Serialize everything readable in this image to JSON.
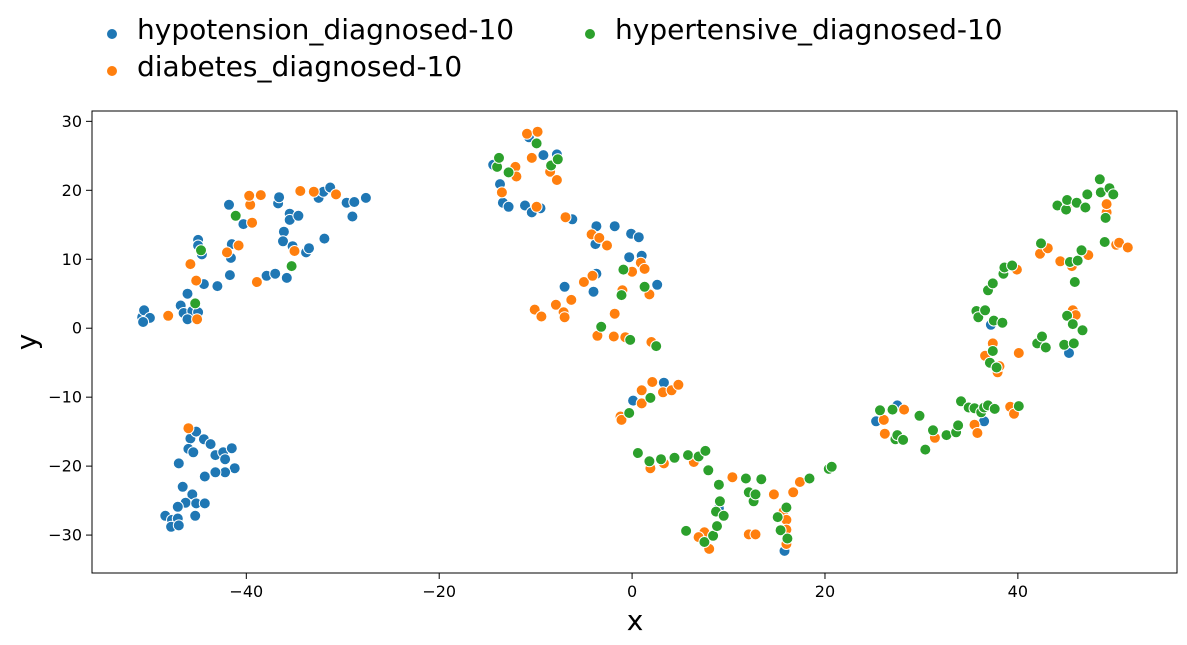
{
  "chart_data": {
    "type": "scatter",
    "title": "",
    "xlabel": "x",
    "ylabel": "y",
    "xlim": [
      -56,
      56.5
    ],
    "ylim": [
      -35.5,
      31.5
    ],
    "xticks": [
      -40,
      -20,
      0,
      20,
      40
    ],
    "xtick_labels": [
      "−40",
      "−20",
      "0",
      "20",
      "40"
    ],
    "yticks": [
      -30,
      -20,
      -10,
      0,
      10,
      20,
      30
    ],
    "ytick_labels": [
      "−30",
      "−20",
      "−10",
      "0",
      "10",
      "20",
      "30"
    ],
    "grid": false,
    "legend_position": "top-left, above plot, two columns",
    "series": [
      {
        "name": "hypotension_diagnosed-10",
        "color": "#1f77b4",
        "points": [
          [
            -50.8,
            1.6
          ],
          [
            -50.6,
            2.6
          ],
          [
            -50.0,
            1.5
          ],
          [
            -50.7,
            0.9
          ],
          [
            -46.8,
            3.3
          ],
          [
            -46.5,
            2.2
          ],
          [
            -45.6,
            2.5
          ],
          [
            -46.1,
            5.0
          ],
          [
            -45.0,
            2.3
          ],
          [
            -46.1,
            1.3
          ],
          [
            -44.4,
            6.4
          ],
          [
            -43.0,
            6.1
          ],
          [
            -41.7,
            7.7
          ],
          [
            -45.0,
            12.8
          ],
          [
            -45.0,
            12.0
          ],
          [
            -44.6,
            10.7
          ],
          [
            -41.6,
            10.2
          ],
          [
            -41.5,
            12.2
          ],
          [
            -41.8,
            17.9
          ],
          [
            -40.3,
            15.1
          ],
          [
            -37.9,
            7.6
          ],
          [
            -37.0,
            7.9
          ],
          [
            -36.7,
            18.1
          ],
          [
            -36.6,
            19.0
          ],
          [
            -36.1,
            14.0
          ],
          [
            -36.2,
            12.6
          ],
          [
            -35.5,
            16.6
          ],
          [
            -35.5,
            15.7
          ],
          [
            -35.2,
            11.9
          ],
          [
            -34.6,
            16.3
          ],
          [
            -35.8,
            7.3
          ],
          [
            -33.8,
            11.0
          ],
          [
            -33.5,
            11.6
          ],
          [
            -32.5,
            18.9
          ],
          [
            -32.0,
            19.8
          ],
          [
            -31.3,
            20.4
          ],
          [
            -31.9,
            13.0
          ],
          [
            -29.6,
            18.2
          ],
          [
            -29.0,
            16.2
          ],
          [
            -28.8,
            18.3
          ],
          [
            -27.6,
            18.9
          ],
          [
            -47.0,
            -19.6
          ],
          [
            -45.8,
            -16.0
          ],
          [
            -46.0,
            -17.5
          ],
          [
            -45.2,
            -15.0
          ],
          [
            -44.4,
            -16.1
          ],
          [
            -43.7,
            -16.8
          ],
          [
            -45.5,
            -18.0
          ],
          [
            -43.2,
            -18.4
          ],
          [
            -42.4,
            -18.0
          ],
          [
            -42.2,
            -19.0
          ],
          [
            -41.5,
            -17.4
          ],
          [
            -41.2,
            -20.3
          ],
          [
            -42.2,
            -20.9
          ],
          [
            -43.2,
            -20.9
          ],
          [
            -44.3,
            -21.5
          ],
          [
            -46.6,
            -23.0
          ],
          [
            -45.6,
            -24.1
          ],
          [
            -46.3,
            -25.3
          ],
          [
            -45.2,
            -25.4
          ],
          [
            -44.3,
            -25.4
          ],
          [
            -47.1,
            -25.9
          ],
          [
            -48.4,
            -27.2
          ],
          [
            -47.7,
            -27.8
          ],
          [
            -47.1,
            -27.6
          ],
          [
            -47.8,
            -28.8
          ],
          [
            -47.0,
            -28.6
          ],
          [
            -45.3,
            -27.2
          ],
          [
            -14.4,
            23.7
          ],
          [
            -13.7,
            20.9
          ],
          [
            -13.4,
            18.2
          ],
          [
            -12.8,
            17.6
          ],
          [
            -11.1,
            17.8
          ],
          [
            -10.7,
            27.7
          ],
          [
            -10.4,
            16.8
          ],
          [
            -9.5,
            17.4
          ],
          [
            -9.2,
            25.1
          ],
          [
            -7.8,
            25.2
          ],
          [
            -6.2,
            15.8
          ],
          [
            -7.0,
            6.0
          ],
          [
            -3.7,
            14.8
          ],
          [
            -3.8,
            12.2
          ],
          [
            -1.8,
            14.8
          ],
          [
            -0.1,
            13.7
          ],
          [
            0.7,
            13.2
          ],
          [
            1.0,
            10.5
          ],
          [
            -0.3,
            10.3
          ],
          [
            -3.7,
            7.9
          ],
          [
            -4.0,
            5.3
          ],
          [
            2.6,
            6.3
          ],
          [
            0.1,
            -10.5
          ],
          [
            3.3,
            -7.9
          ],
          [
            9.0,
            -26.1
          ],
          [
            15.8,
            -32.3
          ],
          [
            25.3,
            -13.5
          ],
          [
            27.5,
            -11.2
          ],
          [
            36.5,
            -13.5
          ],
          [
            37.2,
            0.5
          ],
          [
            45.3,
            -3.6
          ]
        ]
      },
      {
        "name": "diabetes_diagnosed-10",
        "color": "#ff7f0e",
        "points": [
          [
            -48.1,
            1.8
          ],
          [
            -45.1,
            1.3
          ],
          [
            -45.2,
            6.9
          ],
          [
            -45.8,
            9.3
          ],
          [
            -42.0,
            11.0
          ],
          [
            -40.8,
            12.0
          ],
          [
            -39.4,
            15.3
          ],
          [
            -39.6,
            17.9
          ],
          [
            -39.7,
            19.2
          ],
          [
            -38.5,
            19.3
          ],
          [
            -38.9,
            6.7
          ],
          [
            -35.0,
            11.2
          ],
          [
            -34.4,
            19.9
          ],
          [
            -33.0,
            19.8
          ],
          [
            -30.7,
            19.4
          ],
          [
            -46.0,
            -14.5
          ],
          [
            -13.5,
            19.7
          ],
          [
            -12.1,
            23.4
          ],
          [
            -12.0,
            22.0
          ],
          [
            -10.9,
            28.2
          ],
          [
            -10.4,
            24.7
          ],
          [
            -9.8,
            28.5
          ],
          [
            -9.9,
            17.6
          ],
          [
            -8.5,
            22.7
          ],
          [
            -7.8,
            21.5
          ],
          [
            -6.9,
            16.1
          ],
          [
            -5.0,
            6.7
          ],
          [
            -4.2,
            13.6
          ],
          [
            -3.4,
            13.1
          ],
          [
            -2.6,
            12.0
          ],
          [
            -4.1,
            7.6
          ],
          [
            -6.3,
            4.1
          ],
          [
            -7.9,
            3.4
          ],
          [
            -10.1,
            2.7
          ],
          [
            -9.4,
            1.7
          ],
          [
            -7.1,
            2.3
          ],
          [
            -7.0,
            1.6
          ],
          [
            -1.8,
            2.1
          ],
          [
            -3.6,
            -1.1
          ],
          [
            -1.9,
            -1.2
          ],
          [
            -0.7,
            -1.3
          ],
          [
            0.0,
            8.2
          ],
          [
            0.9,
            9.5
          ],
          [
            1.3,
            8.6
          ],
          [
            -1.0,
            5.5
          ],
          [
            1.8,
            4.9
          ],
          [
            2.0,
            -2.0
          ],
          [
            1.0,
            -9.0
          ],
          [
            2.1,
            -7.8
          ],
          [
            3.2,
            -9.3
          ],
          [
            4.1,
            -9.0
          ],
          [
            4.8,
            -8.2
          ],
          [
            1.0,
            -10.9
          ],
          [
            -1.2,
            -12.8
          ],
          [
            -1.1,
            -13.3
          ],
          [
            1.9,
            -20.3
          ],
          [
            3.3,
            -19.6
          ],
          [
            6.4,
            -19.4
          ],
          [
            7.5,
            -29.6
          ],
          [
            6.9,
            -30.3
          ],
          [
            8.0,
            -32.0
          ],
          [
            10.4,
            -21.6
          ],
          [
            12.1,
            -29.9
          ],
          [
            12.8,
            -29.9
          ],
          [
            14.7,
            -24.1
          ],
          [
            15.7,
            -26.6
          ],
          [
            16.0,
            -27.8
          ],
          [
            16.0,
            -29.2
          ],
          [
            16.0,
            -31.3
          ],
          [
            16.7,
            -23.8
          ],
          [
            17.4,
            -22.3
          ],
          [
            26.1,
            -13.3
          ],
          [
            26.2,
            -15.3
          ],
          [
            28.2,
            -11.8
          ],
          [
            31.4,
            -15.9
          ],
          [
            35.5,
            -14.0
          ],
          [
            35.8,
            -15.2
          ],
          [
            36.6,
            -4.0
          ],
          [
            37.4,
            -2.2
          ],
          [
            37.9,
            -6.4
          ],
          [
            38.1,
            -5.5
          ],
          [
            39.2,
            -11.4
          ],
          [
            39.6,
            -12.4
          ],
          [
            40.1,
            -3.6
          ],
          [
            39.9,
            8.5
          ],
          [
            42.3,
            10.8
          ],
          [
            43.1,
            11.6
          ],
          [
            44.4,
            9.7
          ],
          [
            45.1,
            17.3
          ],
          [
            45.6,
            9.0
          ],
          [
            45.7,
            2.6
          ],
          [
            46.0,
            1.9
          ],
          [
            47.3,
            10.6
          ],
          [
            49.2,
            16.8
          ],
          [
            49.2,
            18.0
          ],
          [
            50.2,
            12.1
          ],
          [
            50.5,
            12.4
          ],
          [
            51.4,
            11.7
          ]
        ]
      },
      {
        "name": "hypertensive_diagnosed-10",
        "color": "#2ca02c",
        "points": [
          [
            -45.3,
            3.6
          ],
          [
            -44.7,
            11.3
          ],
          [
            -41.1,
            16.3
          ],
          [
            -35.3,
            9.0
          ],
          [
            -14.0,
            23.4
          ],
          [
            -13.8,
            24.7
          ],
          [
            -12.8,
            22.6
          ],
          [
            -9.9,
            26.8
          ],
          [
            -8.4,
            23.6
          ],
          [
            -7.7,
            24.5
          ],
          [
            -0.9,
            8.5
          ],
          [
            -1.1,
            4.8
          ],
          [
            1.3,
            6.0
          ],
          [
            -3.2,
            0.2
          ],
          [
            -0.2,
            -1.7
          ],
          [
            2.5,
            -2.6
          ],
          [
            -0.3,
            -12.3
          ],
          [
            1.9,
            -10.1
          ],
          [
            0.6,
            -18.1
          ],
          [
            1.8,
            -19.3
          ],
          [
            3.0,
            -19.0
          ],
          [
            4.4,
            -18.8
          ],
          [
            5.6,
            -29.4
          ],
          [
            5.8,
            -18.4
          ],
          [
            6.9,
            -18.6
          ],
          [
            7.5,
            -31.0
          ],
          [
            7.6,
            -17.8
          ],
          [
            7.9,
            -20.6
          ],
          [
            8.4,
            -30.1
          ],
          [
            8.7,
            -26.6
          ],
          [
            8.8,
            -28.7
          ],
          [
            9.0,
            -22.7
          ],
          [
            9.1,
            -25.1
          ],
          [
            9.5,
            -27.2
          ],
          [
            11.8,
            -21.8
          ],
          [
            12.1,
            -23.8
          ],
          [
            12.6,
            -25.1
          ],
          [
            12.8,
            -24.1
          ],
          [
            13.4,
            -21.9
          ],
          [
            15.1,
            -27.4
          ],
          [
            15.4,
            -29.3
          ],
          [
            16.0,
            -26.0
          ],
          [
            16.1,
            -30.5
          ],
          [
            18.4,
            -21.8
          ],
          [
            20.4,
            -20.4
          ],
          [
            20.7,
            -20.1
          ],
          [
            25.7,
            -11.9
          ],
          [
            27.0,
            -11.8
          ],
          [
            27.3,
            -16.1
          ],
          [
            27.5,
            -15.5
          ],
          [
            28.1,
            -16.2
          ],
          [
            29.8,
            -12.7
          ],
          [
            30.4,
            -17.6
          ],
          [
            31.2,
            -14.8
          ],
          [
            32.6,
            -15.5
          ],
          [
            33.6,
            -15.1
          ],
          [
            33.8,
            -14.1
          ],
          [
            34.1,
            -10.6
          ],
          [
            34.9,
            -11.5
          ],
          [
            35.5,
            -11.6
          ],
          [
            36.2,
            -12.2
          ],
          [
            36.5,
            -11.5
          ],
          [
            36.9,
            -11.2
          ],
          [
            37.6,
            -11.7
          ],
          [
            35.7,
            2.5
          ],
          [
            35.9,
            1.6
          ],
          [
            36.6,
            2.6
          ],
          [
            37.1,
            -5.0
          ],
          [
            37.4,
            -3.3
          ],
          [
            37.5,
            1.1
          ],
          [
            37.8,
            -5.7
          ],
          [
            38.4,
            0.8
          ],
          [
            36.9,
            5.5
          ],
          [
            37.4,
            6.5
          ],
          [
            38.5,
            7.9
          ],
          [
            38.6,
            8.8
          ],
          [
            39.4,
            9.1
          ],
          [
            40.1,
            -11.3
          ],
          [
            42.0,
            -2.2
          ],
          [
            42.5,
            -1.2
          ],
          [
            42.9,
            -2.8
          ],
          [
            42.4,
            12.3
          ],
          [
            44.1,
            17.8
          ],
          [
            45.0,
            17.2
          ],
          [
            45.1,
            18.6
          ],
          [
            44.8,
            -2.4
          ],
          [
            45.1,
            1.8
          ],
          [
            45.4,
            9.6
          ],
          [
            45.8,
            -2.2
          ],
          [
            45.7,
            0.6
          ],
          [
            45.9,
            6.7
          ],
          [
            46.2,
            9.8
          ],
          [
            46.1,
            18.2
          ],
          [
            46.6,
            11.3
          ],
          [
            46.7,
            -0.3
          ],
          [
            47.0,
            17.5
          ],
          [
            47.2,
            19.4
          ],
          [
            48.5,
            21.6
          ],
          [
            48.6,
            19.7
          ],
          [
            49.0,
            12.5
          ],
          [
            49.1,
            16.0
          ],
          [
            49.5,
            20.3
          ],
          [
            49.9,
            19.4
          ]
        ]
      }
    ]
  }
}
